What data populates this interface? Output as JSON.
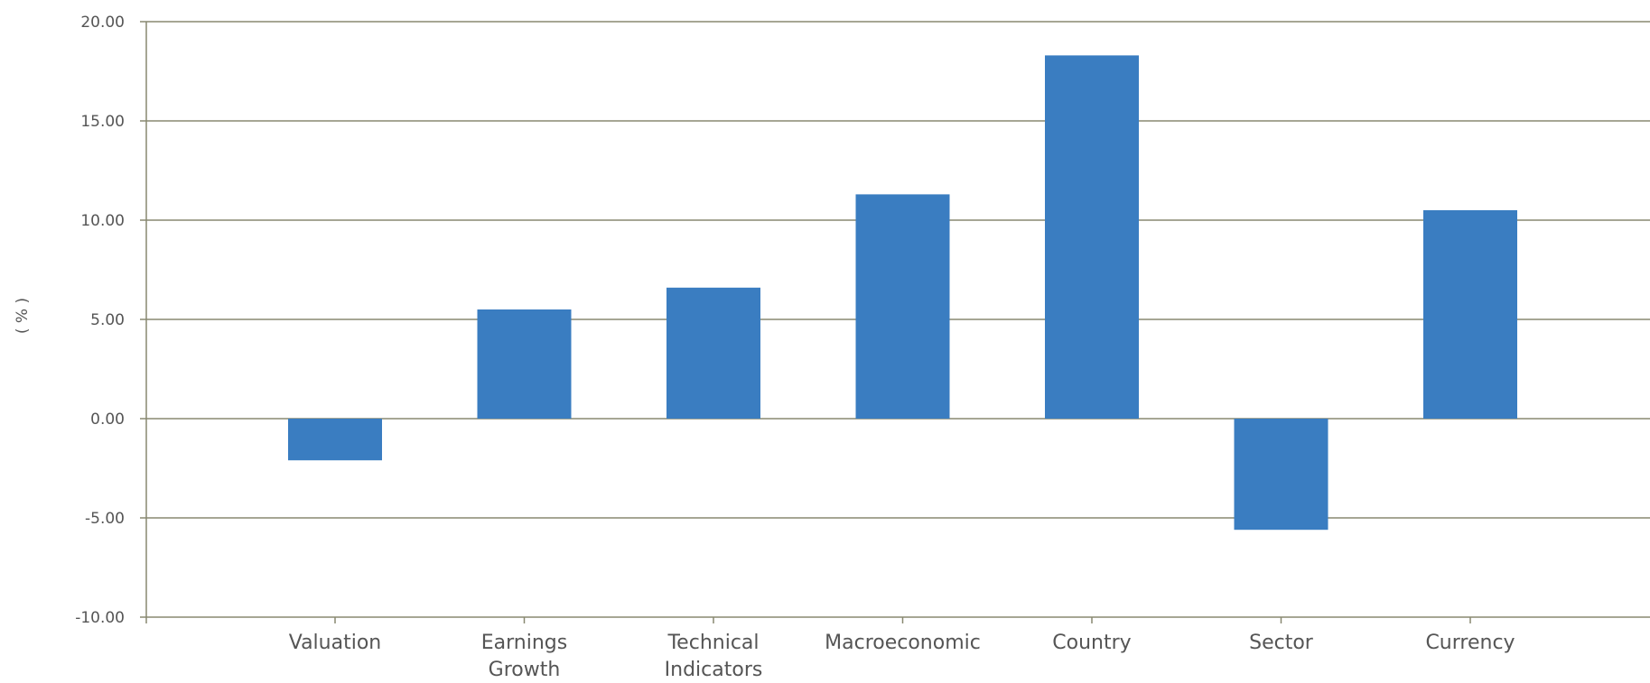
{
  "chart_data": {
    "type": "bar",
    "title": "",
    "xlabel": "",
    "ylabel": "( % )",
    "categories": [
      [
        "Valuation"
      ],
      [
        "Earnings",
        "Growth"
      ],
      [
        "Technical",
        "Indicators"
      ],
      [
        "Macroeconomic"
      ],
      [
        "Country"
      ],
      [
        "Sector"
      ],
      [
        "Currency"
      ]
    ],
    "values": [
      -2.1,
      5.5,
      6.6,
      11.3,
      18.3,
      -5.6,
      10.5
    ],
    "ylim": [
      -10,
      20
    ],
    "yticks": [
      20,
      15,
      10,
      5,
      0,
      -5,
      -10
    ],
    "ytick_labels": [
      "20.00",
      "15.00",
      "10.00",
      "5.00",
      "0.00",
      "-5.00",
      "-10.00"
    ],
    "grid": true,
    "bar_color": "#3a7dc1",
    "grid_color": "#888870",
    "axis_color": "#888870",
    "text_color": "#555555"
  }
}
